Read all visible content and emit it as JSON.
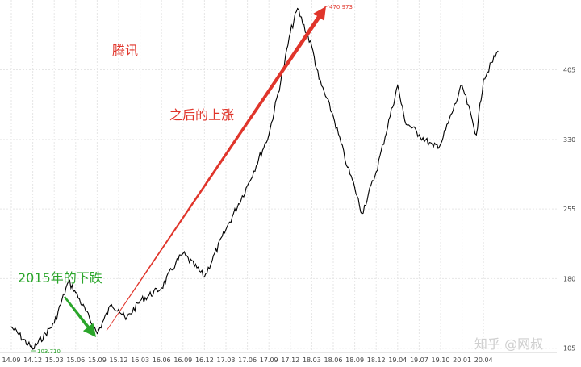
{
  "chart_data": {
    "type": "line",
    "title": "腾讯",
    "x_ticks": [
      "14.09",
      "14.12",
      "15.03",
      "15.06",
      "15.09",
      "15.12",
      "16.03",
      "16.06",
      "16.09",
      "16.12",
      "17.03",
      "17.06",
      "17.09",
      "17.12",
      "18.03",
      "18.06",
      "18.09",
      "18.12",
      "19.04",
      "19.07",
      "19.10",
      "20.01",
      "20.04"
    ],
    "y_ticks": [
      105,
      180,
      255,
      330,
      405
    ],
    "ylim": [
      103,
      475
    ],
    "grid": true,
    "extremes": {
      "max_label": "470.973",
      "min_label": "103.710"
    },
    "annotations": [
      {
        "text": "之后的上涨",
        "color": "#e0352b"
      },
      {
        "text": "2015年的下跌",
        "color": "#2aa52a"
      }
    ],
    "series": [
      {
        "color": "#000000",
        "points": [
          [
            "14.09",
            128
          ],
          [
            "14.12",
            104
          ],
          [
            "15.03",
            132
          ],
          [
            "15.05",
            177
          ],
          [
            "15.06",
            165
          ],
          [
            "15.09",
            121
          ],
          [
            "15.11",
            152
          ],
          [
            "15.12",
            147
          ],
          [
            "16.01",
            136
          ],
          [
            "16.03",
            156
          ],
          [
            "16.06",
            170
          ],
          [
            "16.08",
            197
          ],
          [
            "16.09",
            207
          ],
          [
            "16.12",
            182
          ],
          [
            "17.03",
            233
          ],
          [
            "17.06",
            280
          ],
          [
            "17.09",
            335
          ],
          [
            "17.11",
            405
          ],
          [
            "17.12",
            445
          ],
          [
            "18.01",
            470.973
          ],
          [
            "18.03",
            430
          ],
          [
            "18.04",
            395
          ],
          [
            "18.06",
            355
          ],
          [
            "18.08",
            300
          ],
          [
            "18.09",
            278
          ],
          [
            "18.10",
            250
          ],
          [
            "18.12",
            295
          ],
          [
            "19.04",
            388
          ],
          [
            "19.05",
            350
          ],
          [
            "19.07",
            335
          ],
          [
            "19.09",
            322
          ],
          [
            "19.10",
            325
          ],
          [
            "20.01",
            388
          ],
          [
            "20.03",
            335
          ],
          [
            "20.04",
            395
          ],
          [
            "20.06",
            425
          ]
        ]
      }
    ]
  },
  "watermark": "知乎 @网叔"
}
